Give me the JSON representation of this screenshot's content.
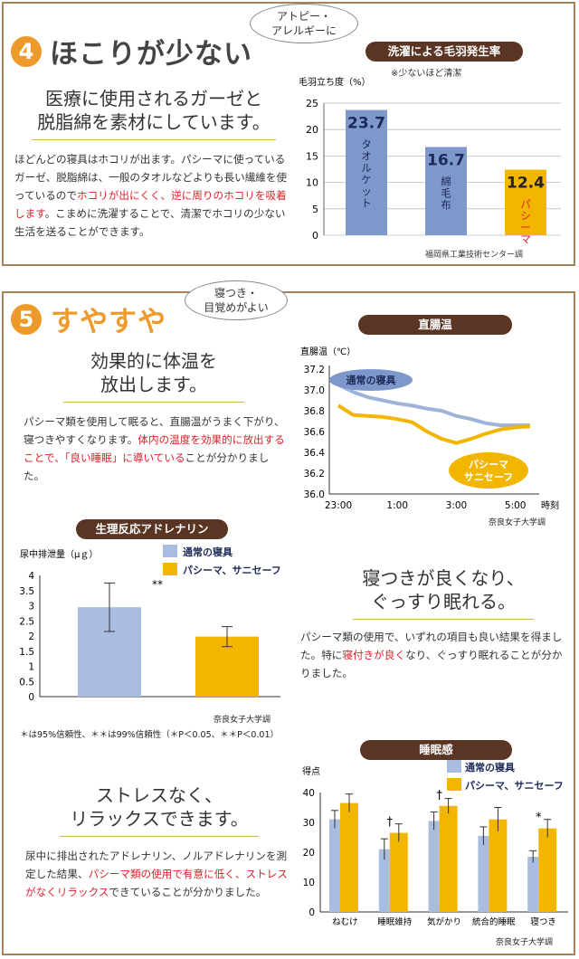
{
  "section4": {
    "number": "4",
    "title": "ほこりが少ない",
    "tag_line1": "アトピー・",
    "tag_line2": "アレルギーに",
    "heading_line1": "医療に使用されるガーゼと",
    "heading_line2": "脱脂綿を素材にしています。",
    "body_part1": "ほどんどの寝具はホコリが出ます。パシーマに使っているガーゼ、脱脂綿は、一般のタオルなどよりも長い繊維を使っているので",
    "body_red": "ホコリが出にくく、逆に周りのホコリを吸着します",
    "body_part2": "。こまめに洗濯することで、清潔でホコリの少ない生活を送ることができます。",
    "chart_title": "洗濯による毛羽発生率",
    "chart_note": "※少ないほど清潔",
    "chart_source": "福岡県工業技術センター調"
  },
  "section5": {
    "number": "5",
    "title": "すやすや",
    "tag_line1": "寝つき・",
    "tag_line2": "目覚めがよい",
    "heading1_line1": "効果的に体温を",
    "heading1_line2": "放出します。",
    "body1_part1": "パシーマ類を使用して眠ると、直腸温がうまく下がり、寝つきやすくなります。",
    "body1_red": "体内の温度を効果的に放出することで、「良い睡眠」に導いている",
    "body1_part2": "ことが分かりました。",
    "heading2_line1": "寝つきが良くなり、",
    "heading2_line2": "ぐっすり眠れる。",
    "body2_part1": "パシーマ類の使用で、いずれの項目も良い結果を得ました。特に",
    "body2_red": "寝付きが良く",
    "body2_part2": "なり、ぐっすり眠れることが分かりました。",
    "heading3_line1": "ストレスなく、",
    "heading3_line2": "リラックスできます。",
    "body3_part1": "尿中に排出されたアドレナリン、ノルアドレナリンを測定した結果、",
    "body3_red": "パシーマ類の使用で有意に低く、ストレスがなくリラックス",
    "body3_part2": "できていることが分かりました。",
    "temp_chart_title": "直腸温",
    "temp_source": "奈良女子大学調",
    "adr_chart_title": "生理反応アドレナリン",
    "adr_source": "奈良女子大学調",
    "adr_footnote": "＊は95%信頼性、＊＊は99%信頼性（＊P＜0.05、＊＊P＜0.01）",
    "sleep_chart_title": "睡眠感",
    "sleep_source": "奈良女子大学調"
  },
  "colors": {
    "blue": "#a9bde0",
    "blue_dark": "#7f98cc",
    "yellow": "#f2b600",
    "brown": "#5a3523",
    "red": "#e0202a",
    "orange": "#ee9a2a"
  },
  "chart_data": [
    {
      "type": "bar",
      "title": "洗濯による毛羽発生率",
      "ylabel": "毛羽立ち度（%）",
      "ylim": [
        0,
        25
      ],
      "yticks": [
        "0",
        "5",
        "10",
        "15",
        "20",
        "25"
      ],
      "categories": [
        "タオルケット",
        "綿毛布",
        "パシーマ"
      ],
      "values": [
        23.7,
        16.7,
        12.4
      ],
      "value_labels": [
        "23.7",
        "16.7",
        "12.4"
      ]
    },
    {
      "type": "line",
      "title": "直腸温",
      "ylabel": "直腸温（℃）",
      "xlabel": "時刻",
      "ylim": [
        36.0,
        37.2
      ],
      "yticks": [
        "37.2",
        "37.0",
        "36.8",
        "36.6",
        "36.4",
        "36.2",
        "36.0"
      ],
      "xticks": [
        "23:00",
        "1:00",
        "3:00",
        "5:00"
      ],
      "x_hours": [
        0,
        0.5,
        1,
        1.5,
        2,
        2.5,
        3,
        3.5,
        4,
        4.5,
        5,
        5.5,
        6,
        6.5
      ],
      "series": [
        {
          "name": "通常の寝具",
          "values": [
            37.05,
            36.98,
            36.93,
            36.9,
            36.87,
            36.85,
            36.82,
            36.8,
            36.75,
            36.72,
            36.68,
            36.66,
            36.66,
            36.66
          ]
        },
        {
          "name": "パシーマ サニセーフ",
          "values": [
            36.85,
            36.76,
            36.75,
            36.74,
            36.72,
            36.69,
            36.6,
            36.53,
            36.49,
            36.53,
            36.58,
            36.62,
            36.64,
            36.65
          ]
        }
      ]
    },
    {
      "type": "bar",
      "title": "生理反応アドレナリン",
      "ylabel": "尿中排泄量（μｇ）",
      "ylim": [
        0,
        4
      ],
      "yticks": [
        "4",
        "3.5",
        "3",
        "2.5",
        "2",
        "1.5",
        "1",
        "0.5",
        "0"
      ],
      "series": [
        {
          "name": "通常の寝具",
          "values": [
            2.95
          ],
          "error": [
            0.8
          ]
        },
        {
          "name": "パシーマ、サニセーフ",
          "values": [
            1.98
          ],
          "error": [
            0.33
          ]
        }
      ],
      "annotation": "**"
    },
    {
      "type": "bar",
      "title": "睡眠感",
      "ylabel": "得点",
      "ylim": [
        0,
        40
      ],
      "yticks": [
        "40",
        "30",
        "20",
        "10",
        "0"
      ],
      "categories": [
        "ねむけ",
        "睡眠維持",
        "気がかり",
        "統合的睡眠",
        "寝つき"
      ],
      "series": [
        {
          "name": "通常の寝具",
          "values": [
            31,
            21,
            30.5,
            25.5,
            18.5
          ],
          "error": [
            3,
            3.5,
            3,
            3,
            2
          ]
        },
        {
          "name": "パシーマ、サニセーフ",
          "values": [
            36.5,
            26.5,
            35.5,
            31,
            28
          ],
          "error": [
            3,
            3,
            2.5,
            4,
            3
          ]
        }
      ],
      "markers": [
        "",
        "†",
        "†",
        "",
        "*"
      ]
    }
  ]
}
